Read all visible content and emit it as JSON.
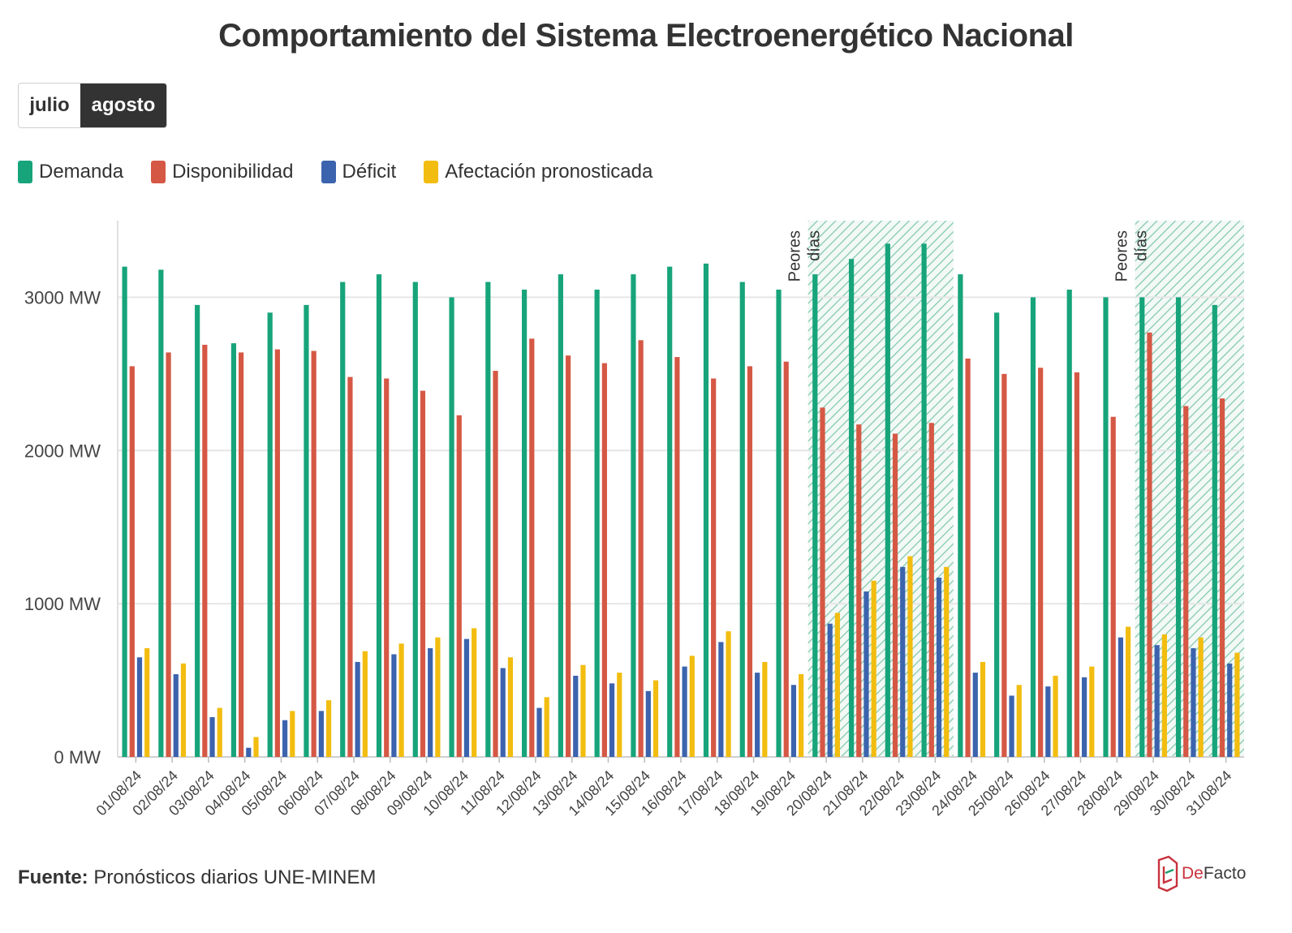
{
  "header": {
    "title": "Comportamiento del Sistema Electroenergético Nacional"
  },
  "month_toggle": {
    "options": [
      "julio",
      "agosto"
    ],
    "selected": "agosto"
  },
  "legend": [
    {
      "label": "Demanda",
      "color": "#17a47a"
    },
    {
      "label": "Disponibilidad",
      "color": "#d55845"
    },
    {
      "label": "Déficit",
      "color": "#3c63ad"
    },
    {
      "label": "Afectación pronosticada",
      "color": "#f2bd10"
    }
  ],
  "annotations": [
    {
      "label_line1": "Peores",
      "label_line2": "días",
      "start": "20/08/24",
      "end": "23/08/24"
    },
    {
      "label_line1": "Peores",
      "label_line2": "días",
      "start": "29/08/24",
      "end": "31/08/24"
    }
  ],
  "highlight_color": "#1f9e6b",
  "chart_data": {
    "type": "bar",
    "categories": [
      "01/08/24",
      "02/08/24",
      "03/08/24",
      "04/08/24",
      "05/08/24",
      "06/08/24",
      "07/08/24",
      "08/08/24",
      "09/08/24",
      "10/08/24",
      "11/08/24",
      "12/08/24",
      "13/08/24",
      "14/08/24",
      "15/08/24",
      "16/08/24",
      "17/08/24",
      "18/08/24",
      "19/08/24",
      "20/08/24",
      "21/08/24",
      "22/08/24",
      "23/08/24",
      "24/08/24",
      "25/08/24",
      "26/08/24",
      "27/08/24",
      "28/08/24",
      "29/08/24",
      "30/08/24",
      "31/08/24"
    ],
    "series": [
      {
        "name": "Demanda",
        "values": [
          3200,
          3180,
          2950,
          2700,
          2900,
          2950,
          3100,
          3150,
          3100,
          3000,
          3100,
          3050,
          3150,
          3050,
          3150,
          3200,
          3220,
          3100,
          3050,
          3150,
          3250,
          3350,
          3350,
          3150,
          2900,
          3000,
          3050,
          3000,
          3000,
          3000,
          2950
        ]
      },
      {
        "name": "Disponibilidad",
        "values": [
          2550,
          2640,
          2690,
          2640,
          2660,
          2650,
          2480,
          2470,
          2390,
          2230,
          2520,
          2730,
          2620,
          2570,
          2720,
          2610,
          2470,
          2550,
          2580,
          2280,
          2170,
          2110,
          2180,
          2600,
          2500,
          2540,
          2510,
          2220,
          2770,
          2290,
          2340
        ]
      },
      {
        "name": "Déficit",
        "values": [
          650,
          540,
          260,
          60,
          240,
          300,
          620,
          670,
          710,
          770,
          580,
          320,
          530,
          480,
          430,
          590,
          750,
          550,
          470,
          870,
          1080,
          1240,
          1170,
          550,
          400,
          460,
          520,
          780,
          730,
          710,
          610
        ]
      },
      {
        "name": "Afectación pronosticada",
        "values": [
          710,
          610,
          320,
          130,
          300,
          370,
          690,
          740,
          780,
          840,
          650,
          390,
          600,
          550,
          500,
          660,
          820,
          620,
          540,
          940,
          1150,
          1310,
          1240,
          620,
          470,
          530,
          590,
          850,
          800,
          780,
          680
        ]
      }
    ],
    "yticks": [
      "0 MW",
      "1000 MW",
      "2000 MW",
      "3000 MW"
    ],
    "ylim": [
      0,
      3500
    ],
    "grid": true,
    "legend_position": "top-left"
  },
  "footer": {
    "source_label": "Fuente:",
    "source_text": "Pronósticos diarios UNE-MINEM",
    "brand": "DeFacto",
    "brand_prefix": "De",
    "brand_suffix": "Facto"
  }
}
